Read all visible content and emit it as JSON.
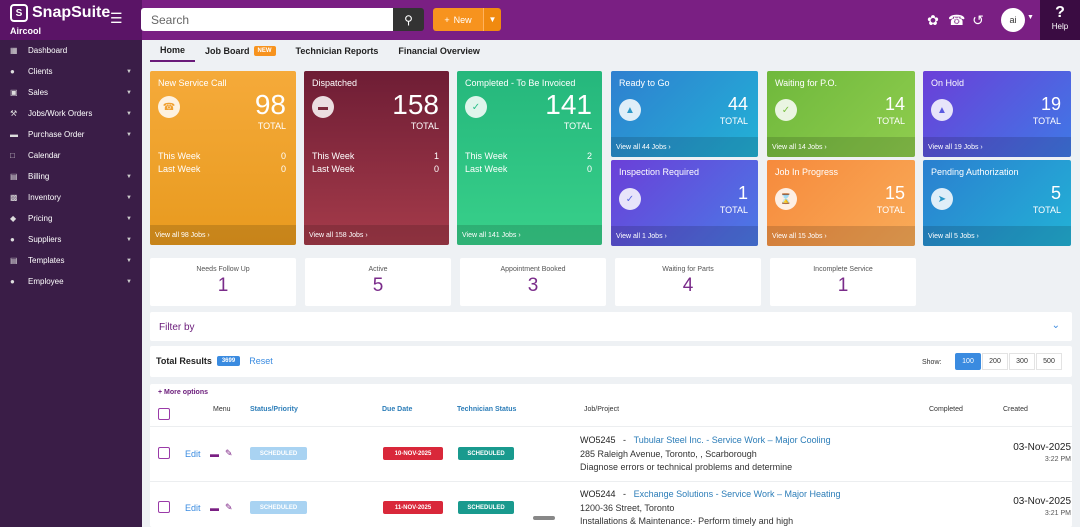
{
  "app": {
    "name": "SnapSuite",
    "company": "Aircool",
    "search_placeholder": "Search",
    "new_label": "New",
    "avatar_initials": "ai",
    "help_label": "Help"
  },
  "sidebar": {
    "items": [
      {
        "label": "Dashboard",
        "icon": "grid-icon",
        "has_caret": false
      },
      {
        "label": "Clients",
        "icon": "user-icon",
        "has_caret": true
      },
      {
        "label": "Sales",
        "icon": "cart-icon",
        "has_caret": true
      },
      {
        "label": "Jobs/Work Orders",
        "icon": "wrench-icon",
        "has_caret": true
      },
      {
        "label": "Purchase Order",
        "icon": "truck-icon",
        "has_caret": true
      },
      {
        "label": "Calendar",
        "icon": "calendar-icon",
        "has_caret": false
      },
      {
        "label": "Billing",
        "icon": "file-icon",
        "has_caret": true
      },
      {
        "label": "Inventory",
        "icon": "box-icon",
        "has_caret": true
      },
      {
        "label": "Pricing",
        "icon": "tag-icon",
        "has_caret": true
      },
      {
        "label": "Suppliers",
        "icon": "people-icon",
        "has_caret": true
      },
      {
        "label": "Templates",
        "icon": "template-icon",
        "has_caret": true
      },
      {
        "label": "Employee",
        "icon": "team-icon",
        "has_caret": true
      }
    ]
  },
  "tabs": [
    {
      "label": "Home",
      "active": true,
      "badge": ""
    },
    {
      "label": "Job Board",
      "active": false,
      "badge": "NEW"
    },
    {
      "label": "Technician Reports",
      "active": false,
      "badge": ""
    },
    {
      "label": "Financial Overview",
      "active": false,
      "badge": ""
    }
  ],
  "cards": {
    "new_service": {
      "title": "New Service Call",
      "value": "98",
      "total_label": "TOTAL",
      "this_week_label": "This Week",
      "this_week": "0",
      "last_week_label": "Last Week",
      "last_week": "0",
      "footer": "View all 98 Jobs",
      "color": "#f0a030"
    },
    "dispatched": {
      "title": "Dispatched",
      "value": "158",
      "total_label": "TOTAL",
      "this_week_label": "This Week",
      "this_week": "1",
      "last_week_label": "Last Week",
      "last_week": "0",
      "footer": "View all 158 Jobs",
      "color": "#7b2a3c"
    },
    "completed": {
      "title": "Completed - To Be Invoiced",
      "value": "141",
      "total_label": "TOTAL",
      "this_week_label": "This Week",
      "this_week": "2",
      "last_week_label": "Last Week",
      "last_week": "0",
      "footer": "View all 141 Jobs",
      "color": "#2bbf8a"
    },
    "ready_to_go": {
      "title": "Ready to Go",
      "value": "44",
      "total_label": "TOTAL",
      "footer": "View all 44 Jobs",
      "color": "#2b98c8"
    },
    "waiting_po": {
      "title": "Waiting for P.O.",
      "value": "14",
      "total_label": "TOTAL",
      "footer": "View all 14 Jobs",
      "color": "#7bbf45"
    },
    "on_hold": {
      "title": "On Hold",
      "value": "19",
      "total_label": "TOTAL",
      "footer": "View all 19 Jobs",
      "color": "#5b5ae0"
    },
    "inspection": {
      "title": "Inspection Required",
      "value": "1",
      "total_label": "TOTAL",
      "footer": "View all 1 Jobs",
      "color": "#5b6ae0"
    },
    "in_progress": {
      "title": "Job In Progress",
      "value": "15",
      "total_label": "TOTAL",
      "footer": "View all 15 Jobs",
      "color": "#f79a4a"
    },
    "pending_auth": {
      "title": "Pending Authorization",
      "value": "5",
      "total_label": "TOTAL",
      "footer": "View all 5 Jobs",
      "color": "#2b98c8"
    }
  },
  "stats": [
    {
      "label": "Needs Follow Up",
      "value": "1"
    },
    {
      "label": "Active",
      "value": "5"
    },
    {
      "label": "Appointment Booked",
      "value": "3"
    },
    {
      "label": "Waiting for Parts",
      "value": "4"
    },
    {
      "label": "Incomplete Service",
      "value": "1"
    }
  ],
  "filter": {
    "label": "Filter by"
  },
  "results": {
    "label": "Total Results",
    "count": "3699",
    "reset": "Reset",
    "show_label": "Show:",
    "page_sizes": [
      "100",
      "200",
      "300",
      "500"
    ],
    "active_size": "100"
  },
  "table": {
    "more_options": "More options",
    "headers": {
      "menu": "Menu",
      "status": "Status/Priority",
      "due": "Due Date",
      "tech": "Technician Status",
      "job": "Job/Project",
      "completed": "Completed",
      "created": "Created"
    },
    "rows": [
      {
        "edit": "Edit",
        "status": "SCHEDULED",
        "due": "10-NOV-2025",
        "tech": "SCHEDULED",
        "wo": "WO5245",
        "sep": "-",
        "project": "Tubular Steel Inc. - Service Work – Major Cooling",
        "address": "285 Raleigh Avenue, Toronto, , Scarborough",
        "desc": "Diagnose errors or technical problems and determine",
        "created_date": "03-Nov-2025",
        "created_time": "3:22 PM"
      },
      {
        "edit": "Edit",
        "status": "SCHEDULED",
        "due": "11-NOV-2025",
        "tech": "SCHEDULED",
        "wo": "WO5244",
        "sep": "-",
        "project": "Exchange Solutions - Service Work – Major Heating",
        "address": "1200-36 Street, Toronto",
        "desc": "Installations & Maintenance:- Perform timely and high",
        "created_date": "03-Nov-2025",
        "created_time": "3:21 PM"
      }
    ]
  }
}
